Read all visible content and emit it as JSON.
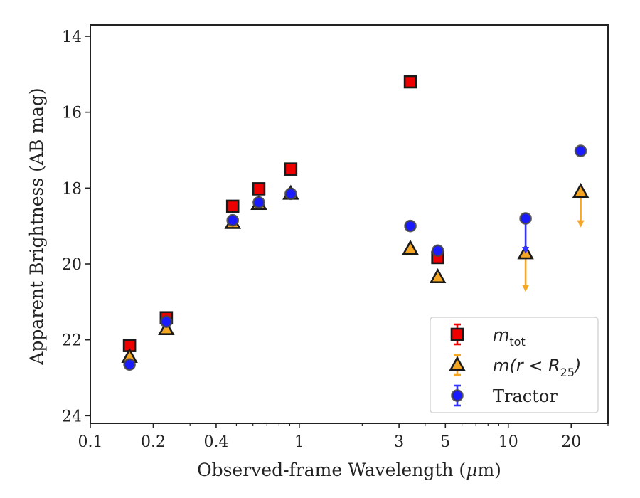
{
  "chart_data": {
    "type": "scatter",
    "xlabel_pre": "Observed-frame Wavelength (",
    "xlabel_mu": "μ",
    "xlabel_post": "m)",
    "ylabel": "Apparent Brightness (AB mag)",
    "x_scale": "log",
    "xlim": [
      0.1,
      30
    ],
    "ylim": [
      24.2,
      13.7
    ],
    "y_inverted": true,
    "x_ticks": [
      {
        "value": 0.1,
        "label": "0.1"
      },
      {
        "value": 0.2,
        "label": "0.2"
      },
      {
        "value": 0.4,
        "label": "0.4"
      },
      {
        "value": 1,
        "label": "1"
      },
      {
        "value": 3,
        "label": "3"
      },
      {
        "value": 5,
        "label": "5"
      },
      {
        "value": 10,
        "label": "10"
      },
      {
        "value": 20,
        "label": "20"
      }
    ],
    "x_minor_ticks": [
      0.3,
      0.5,
      0.6,
      0.7,
      0.8,
      0.9,
      2,
      4,
      6,
      7,
      8,
      9,
      30
    ],
    "y_ticks": [
      {
        "value": 14,
        "label": "14"
      },
      {
        "value": 16,
        "label": "16"
      },
      {
        "value": 18,
        "label": "18"
      },
      {
        "value": 20,
        "label": "20"
      },
      {
        "value": 22,
        "label": "22"
      },
      {
        "value": 24,
        "label": "24"
      }
    ],
    "grid": false,
    "legend_position": "lower right",
    "series": [
      {
        "key": "mtot",
        "legend_main": "m",
        "legend_sub": "tot",
        "marker": "square",
        "color": "#ee0000",
        "err_color": "#ee0000",
        "points": [
          {
            "x": 0.154,
            "y": 22.15
          },
          {
            "x": 0.231,
            "y": 21.42
          },
          {
            "x": 0.48,
            "y": 18.48
          },
          {
            "x": 0.64,
            "y": 18.02
          },
          {
            "x": 0.91,
            "y": 17.5
          },
          {
            "x": 3.4,
            "y": 15.2
          },
          {
            "x": 4.6,
            "y": 19.83
          }
        ]
      },
      {
        "key": "mr25",
        "legend_main": "m(r < R",
        "legend_sub": "25",
        "legend_end": ")",
        "marker": "triangle",
        "color": "#f5a623",
        "err_color": "#f5a623",
        "points": [
          {
            "x": 0.154,
            "y": 22.45
          },
          {
            "x": 0.231,
            "y": 21.72
          },
          {
            "x": 0.48,
            "y": 18.92
          },
          {
            "x": 0.64,
            "y": 18.42
          },
          {
            "x": 0.91,
            "y": 18.15
          },
          {
            "x": 3.4,
            "y": 19.6
          },
          {
            "x": 4.6,
            "y": 20.35
          },
          {
            "x": 12.1,
            "y": 19.72,
            "upper_limit": true,
            "arrow_to": 20.7
          },
          {
            "x": 22.2,
            "y": 18.1,
            "upper_limit": true,
            "arrow_to": 19.0
          }
        ]
      },
      {
        "key": "tractor",
        "legend_main": "Tractor",
        "marker": "circle",
        "color": "#1a1aff",
        "err_color": "#3333ff",
        "points": [
          {
            "x": 0.154,
            "y": 22.65
          },
          {
            "x": 0.231,
            "y": 21.52
          },
          {
            "x": 0.48,
            "y": 18.85
          },
          {
            "x": 0.64,
            "y": 18.38
          },
          {
            "x": 0.91,
            "y": 18.15
          },
          {
            "x": 3.4,
            "y": 19.0
          },
          {
            "x": 4.6,
            "y": 19.65
          },
          {
            "x": 12.1,
            "y": 18.8,
            "upper_limit": true,
            "arrow_to": 19.7
          },
          {
            "x": 22.2,
            "y": 17.02
          }
        ]
      }
    ]
  }
}
